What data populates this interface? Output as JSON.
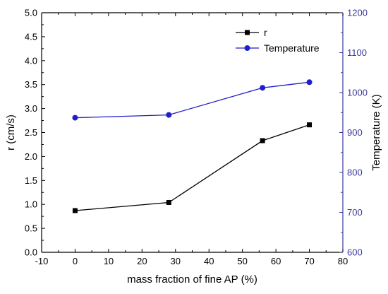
{
  "chart_data": {
    "type": "line",
    "xlabel": "mass fraction of fine AP (%)",
    "ylabel": "r (cm/s)",
    "y2label": "Temperature (K)",
    "xlim": [
      -10,
      80
    ],
    "ylim": [
      0.0,
      5.0
    ],
    "y2lim": [
      600,
      1200
    ],
    "x_ticks": [
      "-10",
      "0",
      "10",
      "20",
      "30",
      "40",
      "50",
      "60",
      "70",
      "80"
    ],
    "y_ticks": [
      "0.0",
      "0.5",
      "1.0",
      "1.5",
      "2.0",
      "2.5",
      "3.0",
      "3.5",
      "4.0",
      "4.5",
      "5.0"
    ],
    "y2_ticks": [
      "600",
      "700",
      "800",
      "900",
      "1000",
      "1100",
      "1200"
    ],
    "legend_position": "top-right",
    "series": [
      {
        "name": "r",
        "axis": "left",
        "marker": "square",
        "color": "#000000",
        "x": [
          0,
          28,
          56,
          70
        ],
        "values": [
          0.87,
          1.04,
          2.33,
          2.66
        ]
      },
      {
        "name": "Temperature",
        "axis": "right",
        "marker": "circle",
        "color": "#1f1fc8",
        "x": [
          0,
          28,
          56,
          70
        ],
        "values": [
          937,
          944,
          1012,
          1026
        ]
      }
    ]
  }
}
